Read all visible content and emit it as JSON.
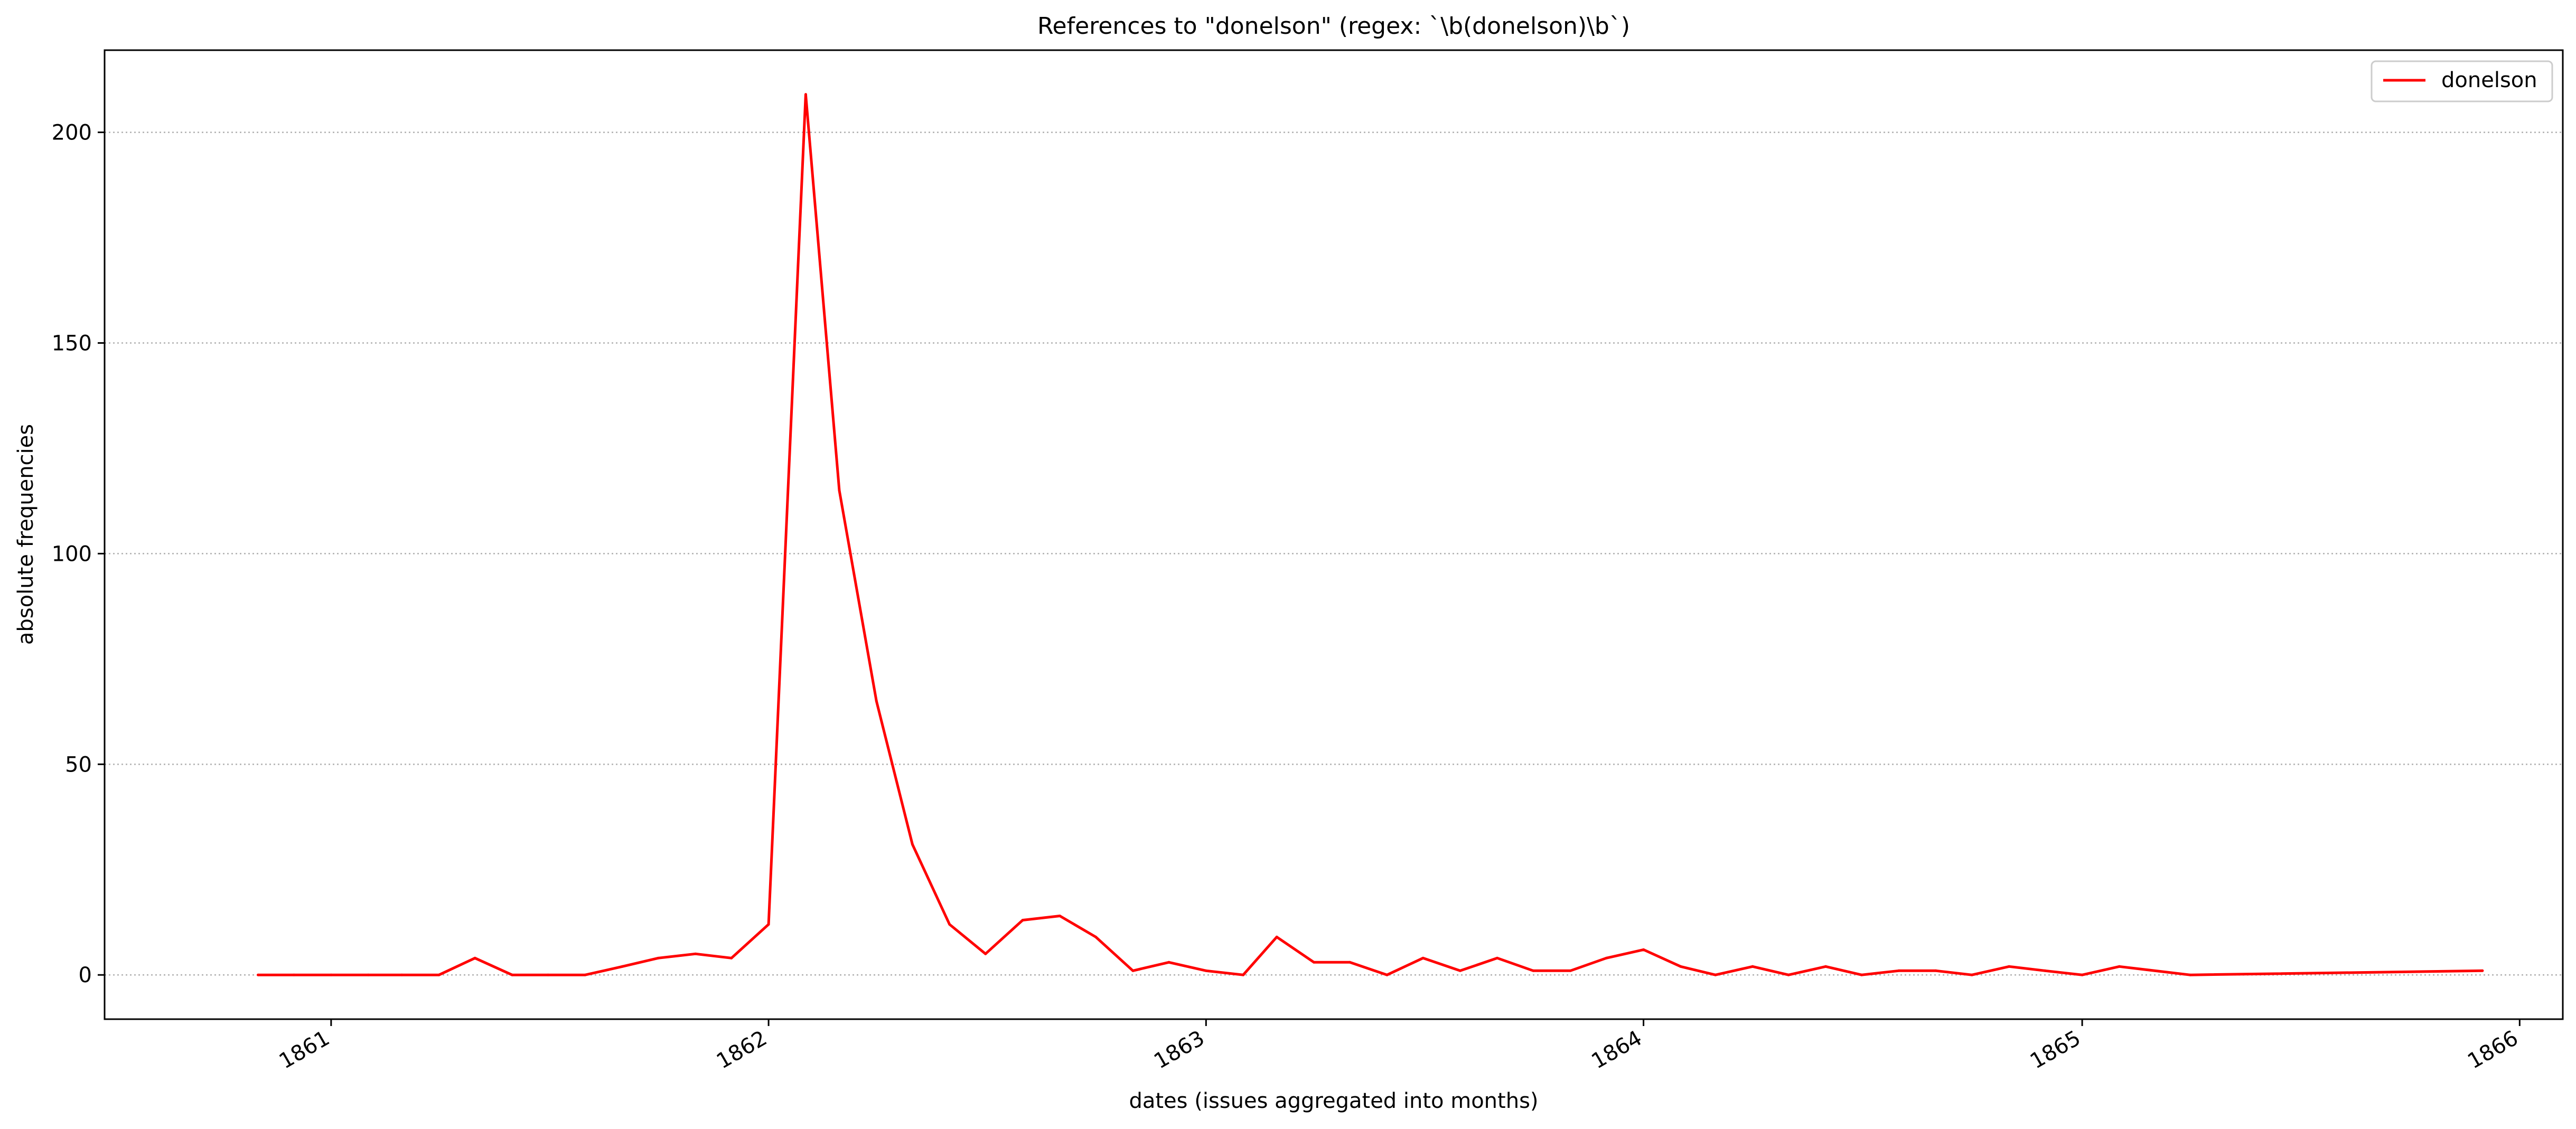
{
  "chart_data": {
    "type": "line",
    "title": "References to \"donelson\" (regex: `\\b(donelson)\\b`)",
    "xlabel": "dates (issues aggregated into months)",
    "ylabel": "absolute frequencies",
    "x_type": "date",
    "xlim": [
      "1860-06-26",
      "1866-02-06"
    ],
    "ylim": [
      -10.5,
      219.5
    ],
    "x_ticks": [
      {
        "label": "1861",
        "date": "1861-01-01"
      },
      {
        "label": "1862",
        "date": "1862-01-01"
      },
      {
        "label": "1863",
        "date": "1863-01-01"
      },
      {
        "label": "1864",
        "date": "1864-01-01"
      },
      {
        "label": "1865",
        "date": "1865-01-01"
      },
      {
        "label": "1866",
        "date": "1866-01-01"
      }
    ],
    "y_ticks": [
      0,
      50,
      100,
      150,
      200
    ],
    "grid": "horizontal dotted",
    "legend": "top-right",
    "colors": {
      "series": "#ff0000",
      "grid": "#b0b0b0"
    },
    "series": [
      {
        "name": "donelson",
        "points": [
          [
            "1860-11-01",
            0
          ],
          [
            "1860-12-01",
            0
          ],
          [
            "1861-01-01",
            0
          ],
          [
            "1861-02-01",
            0
          ],
          [
            "1861-03-01",
            0
          ],
          [
            "1861-04-01",
            0
          ],
          [
            "1861-05-01",
            4
          ],
          [
            "1861-06-01",
            0
          ],
          [
            "1861-07-01",
            0
          ],
          [
            "1861-08-01",
            0
          ],
          [
            "1861-09-01",
            2
          ],
          [
            "1861-10-01",
            4
          ],
          [
            "1861-11-01",
            5
          ],
          [
            "1861-12-01",
            4
          ],
          [
            "1862-01-01",
            12
          ],
          [
            "1862-02-01",
            209
          ],
          [
            "1862-03-01",
            115
          ],
          [
            "1862-04-01",
            65
          ],
          [
            "1862-05-01",
            31
          ],
          [
            "1862-06-01",
            12
          ],
          [
            "1862-07-01",
            5
          ],
          [
            "1862-08-01",
            13
          ],
          [
            "1862-09-01",
            14
          ],
          [
            "1862-10-01",
            9
          ],
          [
            "1862-11-01",
            1
          ],
          [
            "1862-12-01",
            3
          ],
          [
            "1863-01-01",
            1
          ],
          [
            "1863-02-01",
            0
          ],
          [
            "1863-03-01",
            9
          ],
          [
            "1863-04-01",
            3
          ],
          [
            "1863-05-01",
            3
          ],
          [
            "1863-06-01",
            0
          ],
          [
            "1863-07-01",
            4
          ],
          [
            "1863-08-01",
            1
          ],
          [
            "1863-09-01",
            4
          ],
          [
            "1863-10-01",
            1
          ],
          [
            "1863-11-01",
            1
          ],
          [
            "1863-12-01",
            4
          ],
          [
            "1864-01-01",
            6
          ],
          [
            "1864-02-01",
            2
          ],
          [
            "1864-03-01",
            0
          ],
          [
            "1864-04-01",
            2
          ],
          [
            "1864-05-01",
            0
          ],
          [
            "1864-06-01",
            2
          ],
          [
            "1864-07-01",
            0
          ],
          [
            "1864-08-01",
            1
          ],
          [
            "1864-09-01",
            1
          ],
          [
            "1864-10-01",
            0
          ],
          [
            "1864-11-01",
            2
          ],
          [
            "1864-12-01",
            1
          ],
          [
            "1865-01-01",
            0
          ],
          [
            "1865-02-01",
            2
          ],
          [
            "1865-04-01",
            0
          ],
          [
            "1865-12-01",
            1
          ]
        ]
      }
    ]
  }
}
